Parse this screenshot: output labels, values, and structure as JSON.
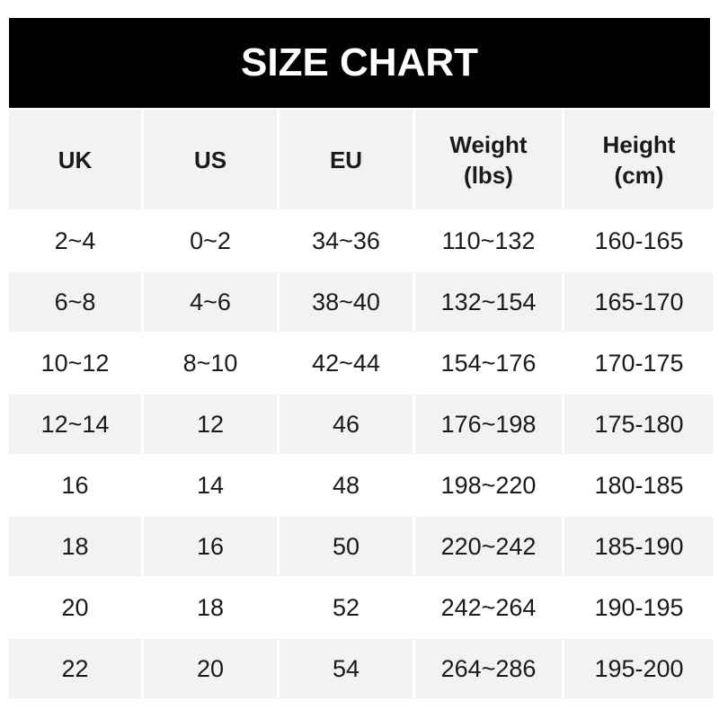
{
  "title": "SIZE CHART",
  "headers": [
    "UK",
    "US",
    "EU",
    "Weight\n(lbs)",
    "Height\n(cm)"
  ],
  "rows": [
    [
      "2~4",
      "0~2",
      "34~36",
      "110~132",
      "160-165"
    ],
    [
      "6~8",
      "4~6",
      "38~40",
      "132~154",
      "165-170"
    ],
    [
      "10~12",
      "8~10",
      "42~44",
      "154~176",
      "170-175"
    ],
    [
      "12~14",
      "12",
      "46",
      "176~198",
      "175-180"
    ],
    [
      "16",
      "14",
      "48",
      "198~220",
      "180-185"
    ],
    [
      "18",
      "16",
      "50",
      "220~242",
      "185-190"
    ],
    [
      "20",
      "18",
      "52",
      "242~264",
      "190-195"
    ],
    [
      "22",
      "20",
      "54",
      "264~286",
      "195-200"
    ]
  ]
}
